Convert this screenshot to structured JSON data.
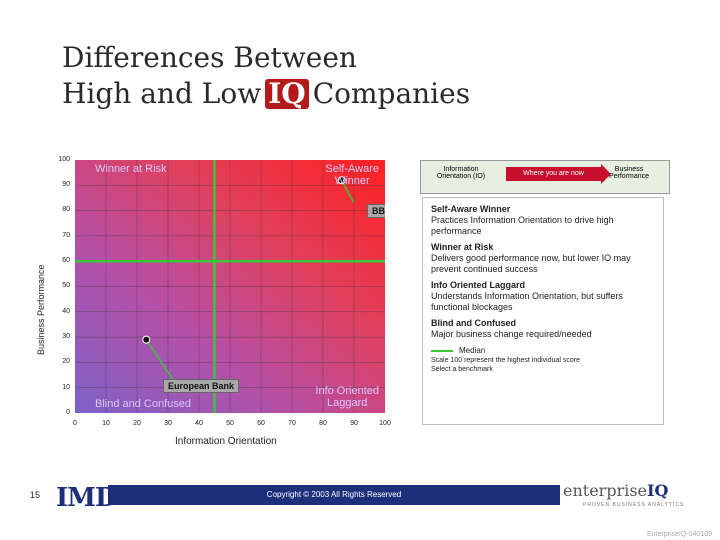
{
  "title_line1": "Differences Between",
  "title_pre": "High and Low",
  "title_iq": "IQ",
  "title_post": "Companies",
  "y_axis_label": "Business Performance",
  "x_axis_label": "Information Orientation",
  "y_ticks": [
    "100",
    "90",
    "80",
    "70",
    "60",
    "50",
    "40",
    "30",
    "20",
    "10",
    "0"
  ],
  "x_ticks": [
    "0",
    "10",
    "20",
    "30",
    "40",
    "50",
    "60",
    "70",
    "80",
    "90",
    "100"
  ],
  "quadrants": {
    "top_left": "Winner at Risk",
    "top_right_1": "Self-Aware",
    "top_right_2": "Winner",
    "bottom_left": "Blind and Confused",
    "bottom_right_1": "Info Oriented",
    "bottom_right_2": "Laggard"
  },
  "chart_data": {
    "type": "scatter",
    "xlabel": "Information Orientation",
    "ylabel": "Business Performance",
    "xlim": [
      0,
      100
    ],
    "ylim": [
      0,
      100
    ],
    "median_x": 45,
    "median_y": 60,
    "points": [
      {
        "label": "BBVA",
        "x": 86,
        "y": 92
      },
      {
        "label": "European Bank",
        "x": 23,
        "y": 29
      }
    ]
  },
  "legend_box": {
    "left_1": "Information",
    "left_2": "Orientation (IO)",
    "arrow": "Where you are now",
    "right_1": "Business",
    "right_2": "Performance"
  },
  "descriptions": [
    {
      "title": "Self-Aware Winner",
      "text": "Practices Information Orientation to drive high performance"
    },
    {
      "title": "Winner at Risk",
      "text": "Delivers good performance now, but lower IO may prevent continued success"
    },
    {
      "title": "Info Oriented Laggard",
      "text": "Understands Information Orientation, but suffers functional blockages"
    },
    {
      "title": "Blind and Confused",
      "text": "Major business change required/needed"
    }
  ],
  "median_label": "Median",
  "note_1": "Scale 100 represent the highest individual score",
  "note_2": "Select a benchmark",
  "page_number": "15",
  "imd_logo": "IMD",
  "copyright": "Copyright © 2003 All Rights Reserved",
  "eiq_brand_1": "enterprise",
  "eiq_brand_2": "IQ",
  "eiq_tagline": "PROVEN BUSINESS ANALYTICS",
  "slide_ref": "EnterpriseIQ-040109",
  "colors": {
    "median": "#38c838",
    "brand_navy": "#1d2f7a",
    "brand_red": "#b31b1b"
  }
}
